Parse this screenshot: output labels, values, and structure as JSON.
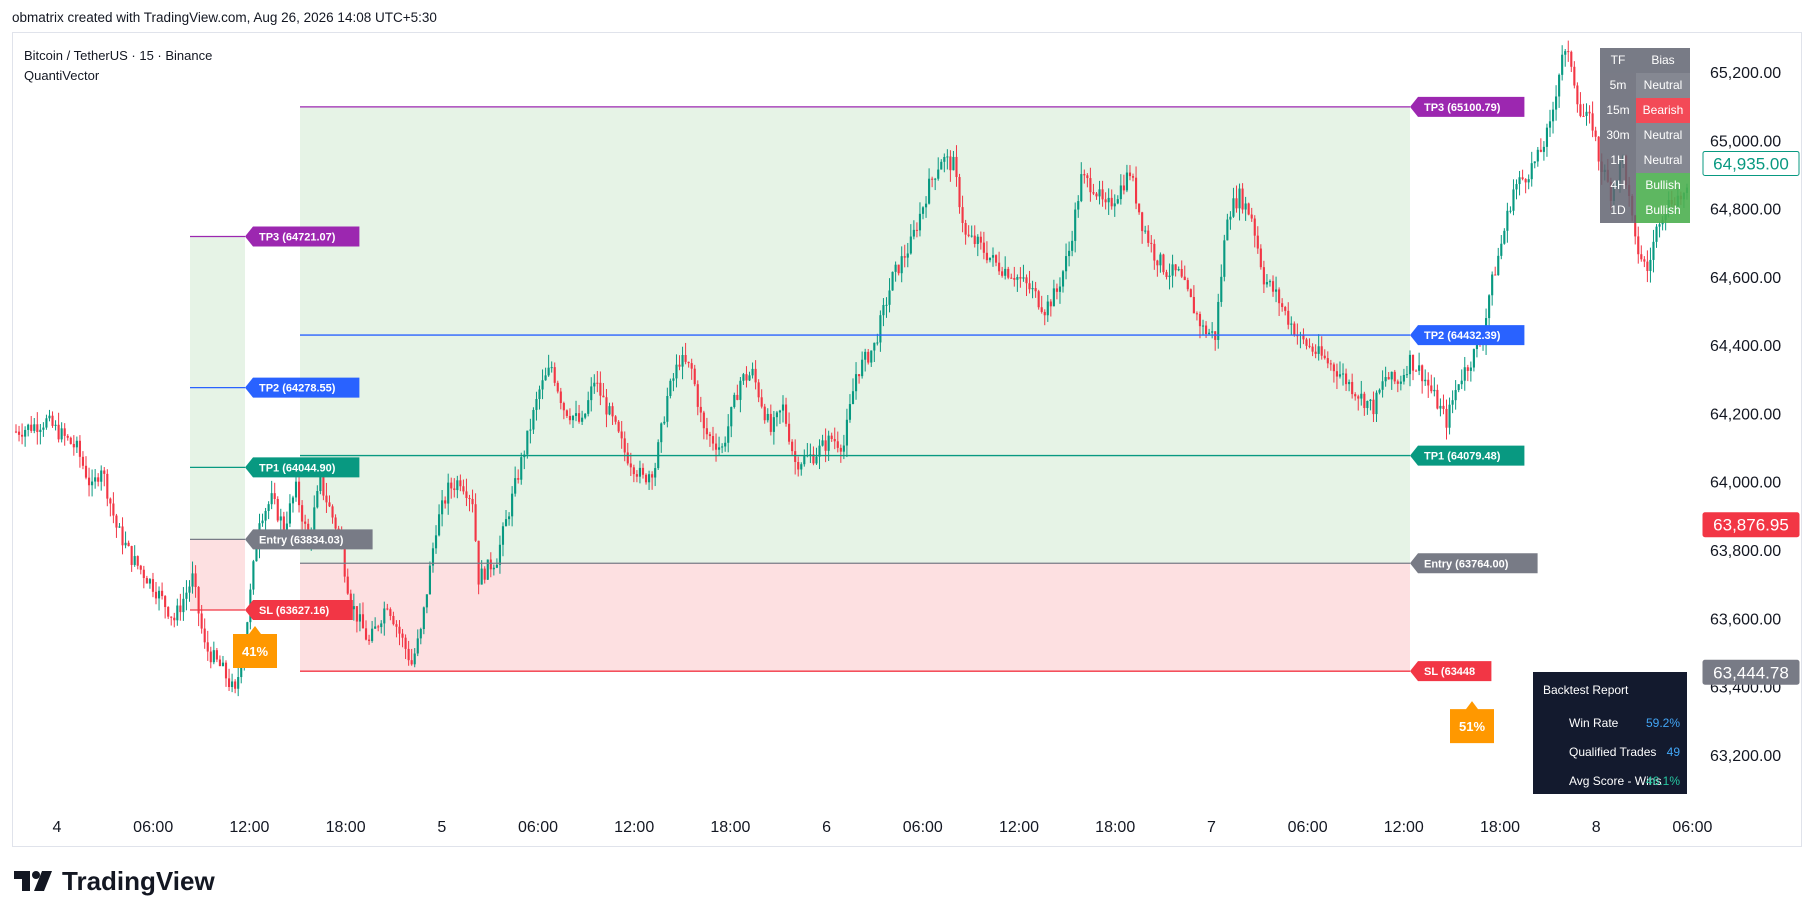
{
  "header": {
    "attribution": "obmatrix created with TradingView.com, Aug 26, 2026 14:08 UTC+5:30"
  },
  "legend": {
    "symbol": "Bitcoin / TetherUS · 15 · Binance",
    "indicator": "QuantiVector"
  },
  "brand": {
    "name": "TradingView"
  },
  "colors": {
    "up": "#089981",
    "down": "#f23645",
    "tp3": "#9c27b0",
    "tp2": "#2962ff",
    "tp1": "#089981",
    "entry": "#787b86",
    "sl": "#f23645",
    "profit_zone": "#e6f3e6",
    "loss_zone": "#fde0e1",
    "badge": "#ff9800"
  },
  "chart_data": {
    "type": "candlestick",
    "y_axis": {
      "range": [
        63100,
        65320
      ],
      "ticks": [
        "65,200.00",
        "65,000.00",
        "64,800.00",
        "64,600.00",
        "64,400.00",
        "64,200.00",
        "64,000.00",
        "63,800.00",
        "63,600.00",
        "63,400.00",
        "63,200.00"
      ],
      "tick_values": [
        65200,
        65000,
        64800,
        64600,
        64400,
        64200,
        64000,
        63800,
        63600,
        63400,
        63200
      ]
    },
    "x_axis": {
      "ticks": [
        "4",
        "06:00",
        "12:00",
        "18:00",
        "5",
        "06:00",
        "12:00",
        "18:00",
        "6",
        "06:00",
        "12:00",
        "18:00",
        "7",
        "06:00",
        "12:00",
        "18:00",
        "8",
        "06:00"
      ]
    },
    "price_labels": {
      "current": "64,935.00",
      "red": "63,876.95",
      "gray": "63,444.78"
    },
    "price_levels": {
      "current": 64935,
      "red": 63876.95,
      "gray": 63444.78
    },
    "trades": [
      {
        "levels": {
          "tp3": 64721.07,
          "tp2": 64278.55,
          "tp1": 64044.9,
          "entry": 63834.03,
          "sl": 63627.16
        },
        "labels": {
          "tp3": "TP3 (64721.07)",
          "tp2": "TP2 (64278.55)",
          "tp1": "TP1 (64044.90)",
          "entry": "Entry (63834.03)",
          "sl": "SL (63627.16)"
        },
        "score": "41%"
      },
      {
        "levels": {
          "tp3": 65100.79,
          "tp2": 64432.39,
          "tp1": 64079.48,
          "entry": 63764.0,
          "sl": 63448
        },
        "labels": {
          "tp3": "TP3 (65100.79)",
          "tp2": "TP2 (64432.39)",
          "tp1": "TP1 (64079.48)",
          "entry": "Entry (63764.00)",
          "sl": "SL (63448"
        },
        "score": "51%"
      }
    ],
    "path": [
      [
        0,
        64150
      ],
      [
        10,
        64180
      ],
      [
        20,
        64100
      ],
      [
        25,
        63980
      ],
      [
        28,
        64050
      ],
      [
        33,
        63870
      ],
      [
        38,
        63780
      ],
      [
        45,
        63700
      ],
      [
        52,
        63600
      ],
      [
        58,
        63720
      ],
      [
        62,
        63520
      ],
      [
        68,
        63450
      ],
      [
        72,
        63380
      ],
      [
        76,
        63600
      ],
      [
        80,
        63900
      ],
      [
        84,
        63950
      ],
      [
        88,
        63870
      ],
      [
        92,
        63980
      ],
      [
        96,
        63830
      ],
      [
        100,
        64000
      ],
      [
        104,
        63900
      ],
      [
        106,
        63850
      ],
      [
        110,
        63650
      ],
      [
        116,
        63530
      ],
      [
        122,
        63650
      ],
      [
        126,
        63560
      ],
      [
        130,
        63470
      ],
      [
        133,
        63560
      ],
      [
        138,
        63870
      ],
      [
        142,
        63980
      ],
      [
        146,
        64010
      ],
      [
        150,
        63950
      ],
      [
        152,
        63720
      ],
      [
        158,
        63780
      ],
      [
        162,
        63920
      ],
      [
        168,
        64130
      ],
      [
        172,
        64270
      ],
      [
        176,
        64340
      ],
      [
        180,
        64220
      ],
      [
        186,
        64170
      ],
      [
        190,
        64300
      ],
      [
        196,
        64180
      ],
      [
        200,
        64090
      ],
      [
        206,
        64010
      ],
      [
        210,
        64050
      ],
      [
        214,
        64250
      ],
      [
        218,
        64360
      ],
      [
        222,
        64330
      ],
      [
        226,
        64150
      ],
      [
        232,
        64100
      ],
      [
        238,
        64300
      ],
      [
        242,
        64320
      ],
      [
        248,
        64150
      ],
      [
        252,
        64220
      ],
      [
        256,
        64060
      ],
      [
        262,
        64080
      ],
      [
        268,
        64130
      ],
      [
        272,
        64110
      ],
      [
        276,
        64320
      ],
      [
        282,
        64400
      ],
      [
        288,
        64600
      ],
      [
        294,
        64700
      ],
      [
        300,
        64870
      ],
      [
        304,
        64950
      ],
      [
        308,
        64930
      ],
      [
        312,
        64720
      ],
      [
        316,
        64700
      ],
      [
        322,
        64640
      ],
      [
        328,
        64610
      ],
      [
        334,
        64560
      ],
      [
        338,
        64510
      ],
      [
        342,
        64560
      ],
      [
        346,
        64680
      ],
      [
        350,
        64890
      ],
      [
        354,
        64870
      ],
      [
        358,
        64800
      ],
      [
        362,
        64850
      ],
      [
        366,
        64910
      ],
      [
        370,
        64760
      ],
      [
        374,
        64670
      ],
      [
        378,
        64620
      ],
      [
        382,
        64610
      ],
      [
        386,
        64530
      ],
      [
        390,
        64450
      ],
      [
        394,
        64430
      ],
      [
        398,
        64790
      ],
      [
        402,
        64840
      ],
      [
        406,
        64780
      ],
      [
        410,
        64600
      ],
      [
        414,
        64550
      ],
      [
        418,
        64480
      ],
      [
        422,
        64420
      ],
      [
        426,
        64390
      ],
      [
        430,
        64360
      ],
      [
        434,
        64330
      ],
      [
        438,
        64290
      ],
      [
        442,
        64250
      ],
      [
        446,
        64220
      ],
      [
        450,
        64310
      ],
      [
        454,
        64290
      ],
      [
        458,
        64360
      ],
      [
        462,
        64320
      ],
      [
        466,
        64250
      ],
      [
        470,
        64180
      ],
      [
        474,
        64300
      ],
      [
        478,
        64360
      ],
      [
        482,
        64430
      ],
      [
        484,
        64550
      ],
      [
        488,
        64700
      ],
      [
        492,
        64860
      ],
      [
        496,
        64900
      ],
      [
        500,
        64950
      ],
      [
        504,
        65040
      ],
      [
        506,
        65150
      ],
      [
        508,
        65260
      ],
      [
        511,
        65230
      ],
      [
        514,
        65080
      ],
      [
        518,
        65050
      ],
      [
        520,
        64950
      ],
      [
        524,
        64850
      ],
      [
        528,
        64950
      ],
      [
        532,
        64700
      ],
      [
        536,
        64620
      ],
      [
        540,
        64780
      ],
      [
        544,
        64830
      ],
      [
        548,
        64840
      ]
    ],
    "n_candles": 550
  },
  "bias_table": {
    "headers": [
      "TF",
      "Bias"
    ],
    "rows": [
      {
        "tf": "5m",
        "bias": "Neutral",
        "color": "#787b86"
      },
      {
        "tf": "15m",
        "bias": "Bearish",
        "color": "#f23645"
      },
      {
        "tf": "30m",
        "bias": "Neutral",
        "color": "#787b86"
      },
      {
        "tf": "1H",
        "bias": "Neutral",
        "color": "#787b86"
      },
      {
        "tf": "4H",
        "bias": "Bullish",
        "color": "#4caf50"
      },
      {
        "tf": "1D",
        "bias": "Bullish",
        "color": "#4caf50"
      }
    ]
  },
  "backtest": {
    "title": "Backtest Report",
    "rows": [
      {
        "label": "Win Rate",
        "value": "59.2%",
        "color": "#42a5f5"
      },
      {
        "label": "Qualified Trades",
        "value": "49",
        "color": "#42a5f5"
      },
      {
        "label": "Avg Score - Wins",
        "value": "46.1%",
        "color": "#26c6a0"
      }
    ]
  }
}
